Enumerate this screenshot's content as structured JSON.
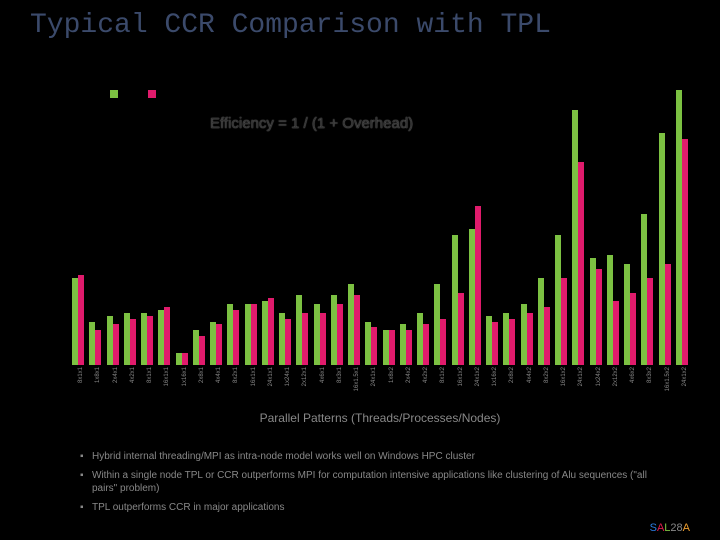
{
  "title": "Typical CCR Comparison with TPL",
  "chart": {
    "type": "bar-grouped",
    "background_color": "#000000",
    "ymax": 1.0,
    "series_colors": {
      "a": "#7cc142",
      "b": "#e01b6c"
    },
    "annotation": "Efficiency = 1  / (1 + Overhead)",
    "annotation_color": "#222222",
    "xaxis_title": "Parallel Patterns (Threads/Processes/Nodes)",
    "xaxis_title_color": "#888888",
    "xlabel_fontsize": 6,
    "categories": [
      "8x1x1",
      "1x8x1",
      "2x4x1",
      "4x2x1",
      "8x1x1",
      "16x1x1",
      "1x16x1",
      "2x8x1",
      "4x4x1",
      "8x2x1",
      "16x1x1",
      "24x1x1",
      "1x24x1",
      "2x12x1",
      "4x6x1",
      "8x3x1",
      "16x1.5x1",
      "24x1x1",
      "1x8x2",
      "2x4x2",
      "4x2x2",
      "8x1x2",
      "16x1x2",
      "24x1x2",
      "1x16x2",
      "2x8x2",
      "4x4x2",
      "8x2x2",
      "16x1x2",
      "24x1x2",
      "1x24x2",
      "2x12x2",
      "4x6x2",
      "8x3x2",
      "16x1.5x2",
      "24x1x2"
    ],
    "series_a": [
      0.3,
      0.15,
      0.17,
      0.18,
      0.18,
      0.19,
      0.04,
      0.12,
      0.15,
      0.21,
      0.21,
      0.22,
      0.18,
      0.24,
      0.21,
      0.24,
      0.28,
      0.15,
      0.12,
      0.14,
      0.18,
      0.28,
      0.45,
      0.47,
      0.17,
      0.18,
      0.21,
      0.3,
      0.45,
      0.88,
      0.37,
      0.38,
      0.35,
      0.52,
      0.8,
      0.95
    ],
    "series_b": [
      0.31,
      0.12,
      0.14,
      0.16,
      0.17,
      0.2,
      0.04,
      0.1,
      0.14,
      0.19,
      0.21,
      0.23,
      0.16,
      0.18,
      0.18,
      0.21,
      0.24,
      0.13,
      0.12,
      0.12,
      0.14,
      0.16,
      0.25,
      0.55,
      0.15,
      0.16,
      0.18,
      0.2,
      0.3,
      0.7,
      0.33,
      0.22,
      0.25,
      0.3,
      0.35,
      0.78
    ]
  },
  "bullets": [
    "Hybrid internal threading/MPI as intra-node model works well on Windows HPC cluster",
    "Within a single node TPL or CCR outperforms MPI for computation intensive applications like clustering of Alu sequences (\"all pairs\" problem)",
    "TPL outperforms CCR in major applications"
  ],
  "footer": {
    "brand": "SALSA",
    "page": "28"
  }
}
